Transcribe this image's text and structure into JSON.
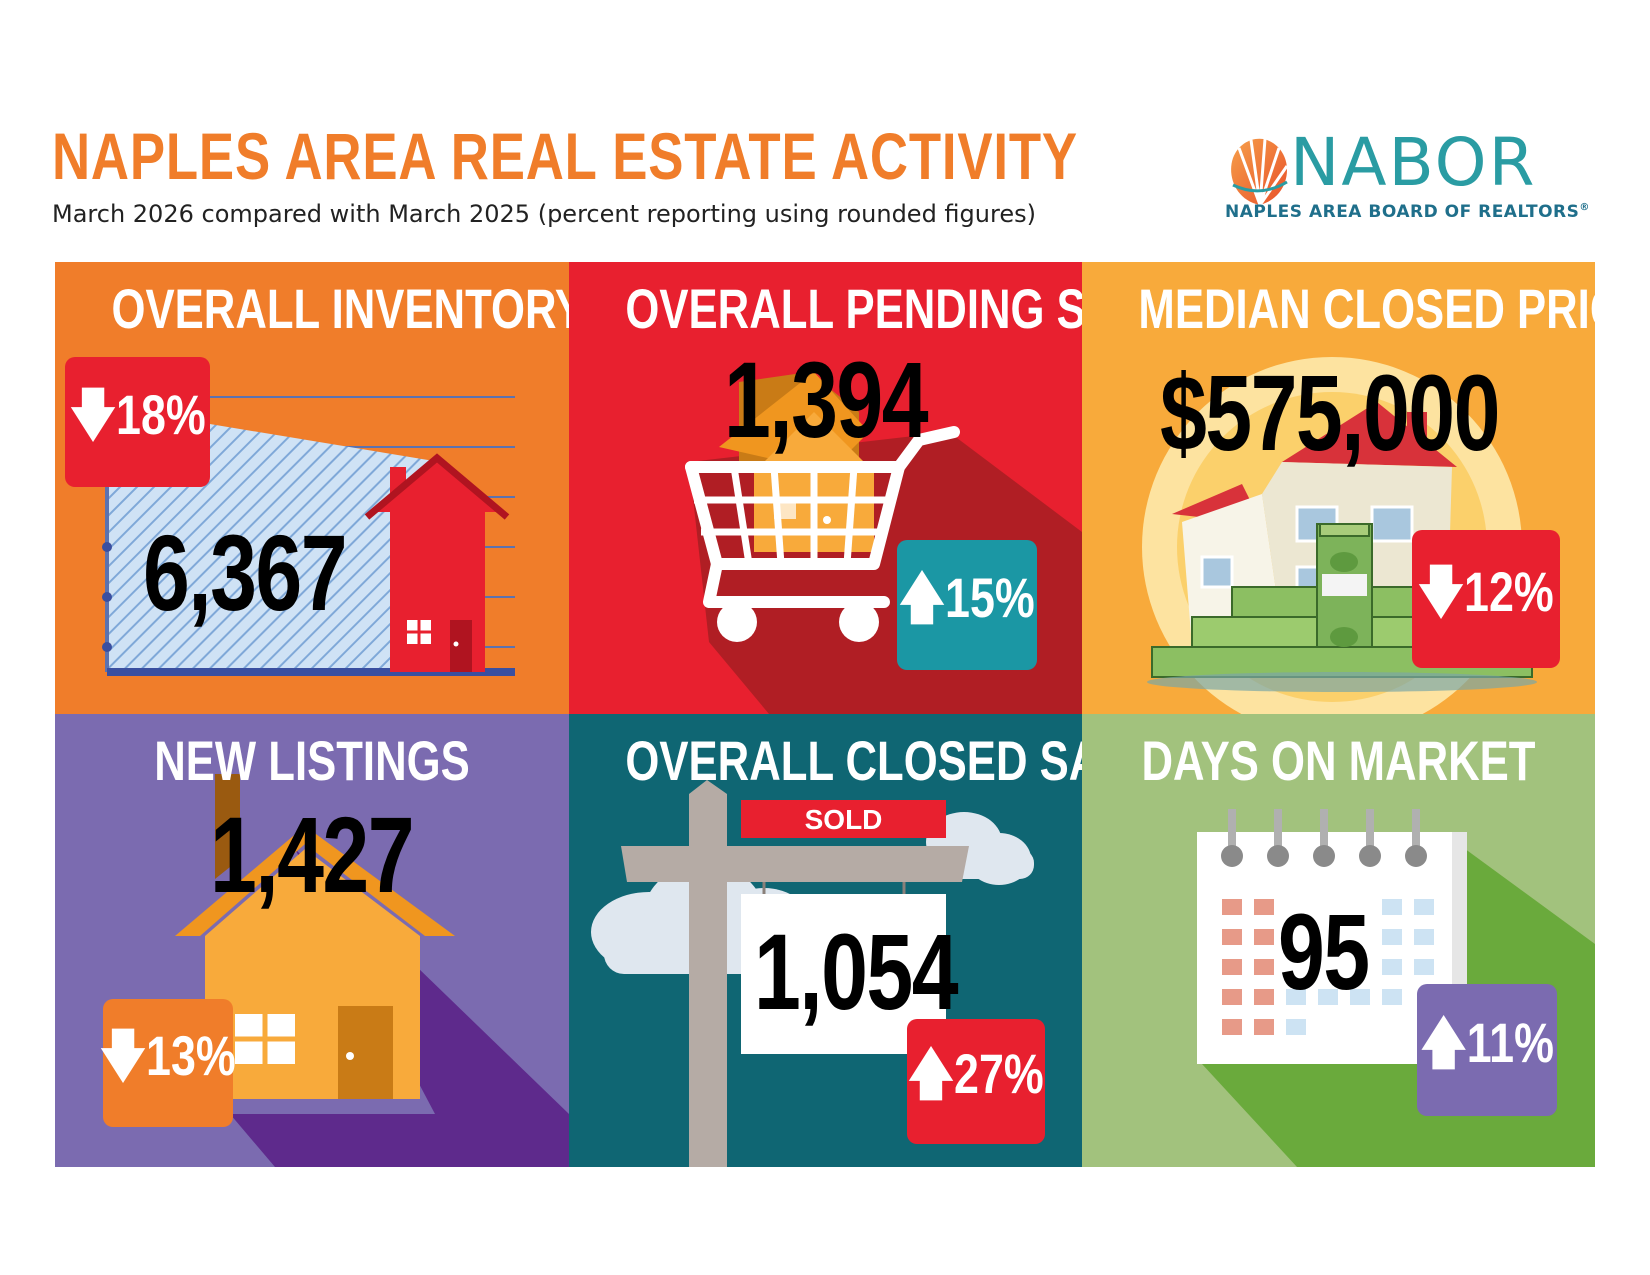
{
  "header": {
    "title": "NAPLES AREA REAL ESTATE ACTIVITY",
    "subtitle": "March 2026 compared with March 2025 (percent reporting using rounded figures)"
  },
  "logo": {
    "wordmark": "NABOR",
    "tagline": "NAPLES AREA BOARD OF REALTORS",
    "registered_mark": "®"
  },
  "colors": {
    "title_orange": "#f07d2a",
    "panel_orange": "#f07d2a",
    "panel_red": "#e8202f",
    "panel_gold": "#f8aa3b",
    "panel_purple": "#7b6bb0",
    "panel_teal": "#0f6673",
    "panel_green": "#a2c27d",
    "badge_red": "#e8202f",
    "badge_teal": "#1b97a4",
    "badge_orange": "#f07d2a",
    "badge_purple": "#7b6bb0"
  },
  "metrics": [
    {
      "label": "OVERALL INVENTORY",
      "value": "6,367",
      "change": "18%",
      "direction": "down",
      "arrow": "🡇",
      "icon": "house-chart-icon"
    },
    {
      "label": "OVERALL PENDING SALES",
      "value": "1,394",
      "change": "15%",
      "direction": "up",
      "arrow": "🡅",
      "icon": "shopping-cart-house-icon"
    },
    {
      "label": "MEDIAN CLOSED PRICE",
      "value": "$575,000",
      "change": "12%",
      "direction": "down",
      "arrow": "🡇",
      "icon": "house-money-icon"
    },
    {
      "label": "NEW LISTINGS",
      "value": "1,427",
      "change": "13%",
      "direction": "down",
      "arrow": "🡇",
      "icon": "house-icon"
    },
    {
      "label": "OVERALL CLOSED SALES",
      "value": "1,054",
      "change": "27%",
      "direction": "up",
      "arrow": "🡅",
      "icon": "sold-sign-icon",
      "sign_text": "SOLD"
    },
    {
      "label": "DAYS ON MARKET",
      "value": "95",
      "change": "11%",
      "direction": "up",
      "arrow": "🡅",
      "icon": "calendar-icon"
    }
  ]
}
